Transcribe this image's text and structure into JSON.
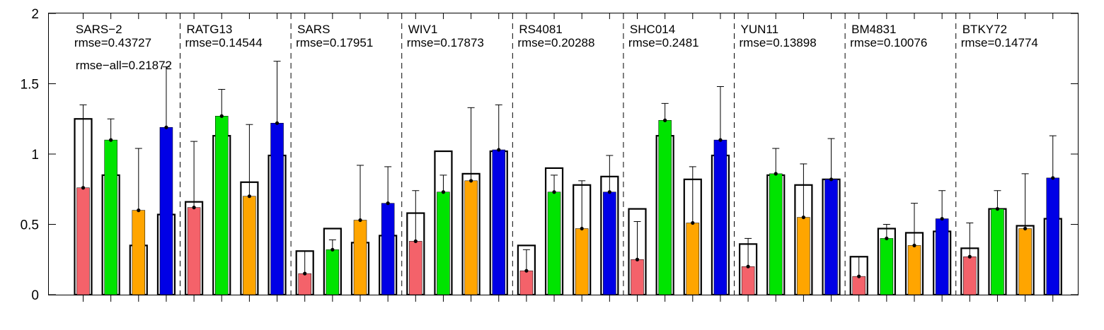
{
  "chart_data": {
    "type": "bar",
    "ylim": [
      0,
      2
    ],
    "yticks": [
      "0",
      "0.5",
      "1",
      "1.5",
      "2"
    ],
    "ytick_values": [
      0,
      0.5,
      1,
      1.5,
      2
    ],
    "series_colors": [
      "#f4626a",
      "#00e400",
      "#ffa500",
      "#0000e6"
    ],
    "groups": [
      {
        "name": "SARS−2",
        "rmse": "rmse=0.43727",
        "extra": "rmse−all=0.21872",
        "outline": [
          1.25,
          0.85,
          0.35,
          0.57
        ],
        "filled": [
          0.76,
          1.1,
          0.6,
          1.19
        ],
        "err": [
          1.35,
          1.25,
          1.04,
          1.62
        ]
      },
      {
        "name": "RATG13",
        "rmse": "rmse=0.14544",
        "outline": [
          0.66,
          1.13,
          0.8,
          0.99
        ],
        "filled": [
          0.62,
          1.27,
          0.7,
          1.22
        ],
        "err": [
          1.09,
          1.46,
          1.21,
          1.66
        ]
      },
      {
        "name": "SARS",
        "rmse": "rmse=0.17951",
        "outline": [
          0.31,
          0.47,
          0.37,
          0.42
        ],
        "filled": [
          0.15,
          0.32,
          0.53,
          0.65
        ],
        "err": [
          0.31,
          0.39,
          0.92,
          0.91
        ]
      },
      {
        "name": "WIV1",
        "rmse": "rmse=0.17873",
        "outline": [
          0.58,
          1.02,
          0.86,
          1.02
        ],
        "filled": [
          0.38,
          0.73,
          0.81,
          1.03
        ],
        "err": [
          0.74,
          0.85,
          1.33,
          1.35
        ]
      },
      {
        "name": "RS4081",
        "rmse": "rmse=0.20288",
        "outline": [
          0.35,
          0.9,
          0.78,
          0.84
        ],
        "filled": [
          0.17,
          0.73,
          0.47,
          0.73
        ],
        "err": [
          0.32,
          0.85,
          0.81,
          0.99
        ]
      },
      {
        "name": "SHC014",
        "rmse": "rmse=0.2481",
        "outline": [
          0.61,
          1.13,
          0.82,
          0.99
        ],
        "filled": [
          0.25,
          1.24,
          0.51,
          1.1
        ],
        "err": [
          0.52,
          1.36,
          0.91,
          1.48
        ]
      },
      {
        "name": "YUN11",
        "rmse": "rmse=0.13898",
        "outline": [
          0.36,
          0.85,
          0.78,
          0.82
        ],
        "filled": [
          0.2,
          0.86,
          0.55,
          0.82
        ],
        "err": [
          0.4,
          1.04,
          0.93,
          1.11
        ]
      },
      {
        "name": "BM4831",
        "rmse": "rmse=0.10076",
        "outline": [
          0.27,
          0.47,
          0.44,
          0.45
        ],
        "filled": [
          0.13,
          0.4,
          0.35,
          0.54
        ],
        "err": [
          0.27,
          0.5,
          0.65,
          0.74
        ]
      },
      {
        "name": "BTKY72",
        "rmse": "rmse=0.14774",
        "outline": [
          0.33,
          0.61,
          0.49,
          0.54
        ],
        "filled": [
          0.27,
          0.61,
          0.47,
          0.83
        ],
        "err": [
          0.51,
          0.74,
          0.86,
          1.13
        ]
      }
    ]
  }
}
